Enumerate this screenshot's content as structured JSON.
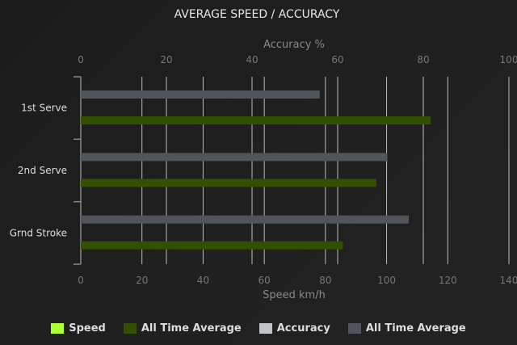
{
  "chart_data": {
    "type": "bar",
    "orientation": "horizontal",
    "title": "AVERAGE SPEED / ACCURACY",
    "categories": [
      "1st Serve",
      "2nd Serve",
      "Grnd Stroke"
    ],
    "top_axis": {
      "label": "Accuracy %",
      "range": [
        0,
        100
      ],
      "ticks": [
        0,
        20,
        40,
        60,
        80,
        100
      ]
    },
    "bottom_axis": {
      "label": "Speed km/h",
      "range": [
        0,
        140
      ],
      "ticks": [
        0,
        20,
        40,
        60,
        80,
        100,
        120,
        140
      ]
    },
    "grid": true,
    "legend_position": "bottom",
    "legend": [
      {
        "name": "Speed",
        "color": "#adff2f"
      },
      {
        "name": "All Time Average",
        "color": "#335000"
      },
      {
        "name": "Accuracy",
        "color": "#c0c4c8"
      },
      {
        "name": "All Time Average",
        "color": "#50555c"
      }
    ],
    "series": [
      {
        "name": "All Time Average",
        "axis": "Accuracy %",
        "color": "#50555c",
        "values": [
          55.8,
          71.6,
          76.6
        ]
      },
      {
        "name": "All Time Average",
        "axis": "Speed km/h",
        "color": "#335000",
        "values": [
          114.4,
          96.6,
          85.7
        ]
      }
    ]
  }
}
